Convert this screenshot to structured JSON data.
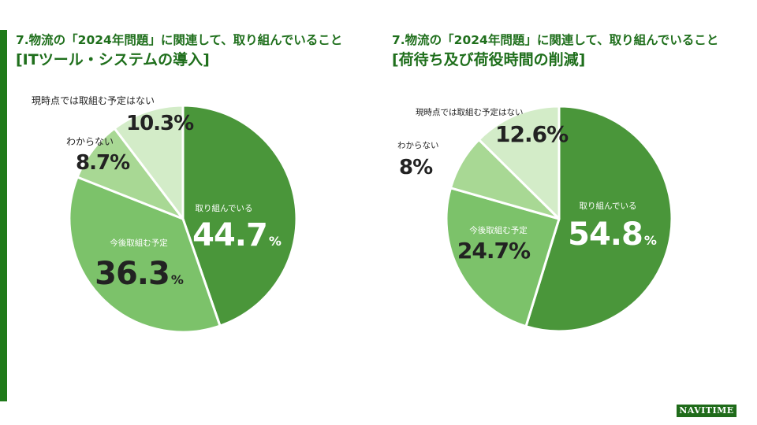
{
  "colors": {
    "brand_green": "#1f6b1a",
    "title_green": "#1f6f1c",
    "slice_colors": [
      "#4a963a",
      "#7cc26a",
      "#a8d894",
      "#d3ecc8"
    ]
  },
  "brand": {
    "logo_text": "NAVITIME"
  },
  "chart_data": [
    {
      "type": "pie",
      "title_line1": "7.物流の「2024年問題」に関連して、取り組んでいること",
      "title_line2": "[ITツール・システムの導入]",
      "slices": [
        {
          "label": "取り組んでいる",
          "value": 44.7,
          "value_text": "44.7"
        },
        {
          "label": "今後取組む予定",
          "value": 36.3,
          "value_text": "36.3"
        },
        {
          "label": "わからない",
          "value": 8.7,
          "value_text": "8.7"
        },
        {
          "label": "現時点では取組む予定はない",
          "value": 10.3,
          "value_text": "10.3"
        }
      ],
      "unit": "%"
    },
    {
      "type": "pie",
      "title_line1": "7.物流の「2024年問題」に関連して、取り組んでいること",
      "title_line2": "[荷待ち及び荷役時間の削減]",
      "slices": [
        {
          "label": "取り組んでいる",
          "value": 54.8,
          "value_text": "54.8"
        },
        {
          "label": "今後取組む予定",
          "value": 24.7,
          "value_text": "24.7"
        },
        {
          "label": "わからない",
          "value": 8,
          "value_text": "8"
        },
        {
          "label": "現時点では取組む予定はない",
          "value": 12.6,
          "value_text": "12.6"
        }
      ],
      "unit": "%"
    }
  ]
}
